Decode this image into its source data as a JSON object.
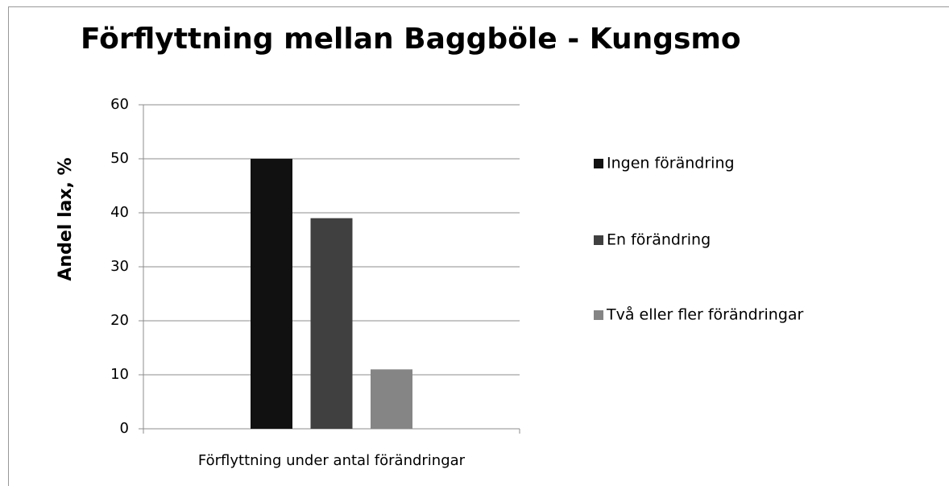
{
  "chart_data": {
    "type": "bar",
    "title": "Förflyttning mellan Baggböle - Kungsmo",
    "y_label": "Andel lax, %",
    "categories": [
      "Förflyttning under antal förändringar"
    ],
    "series": [
      {
        "name": "Ingen förändring",
        "color": "#111111",
        "values": [
          50
        ]
      },
      {
        "name": "En förändring",
        "color": "#404040",
        "values": [
          39
        ]
      },
      {
        "name": "Två eller fler förändringar",
        "color": "#858585",
        "values": [
          11
        ]
      }
    ],
    "ylim": [
      0,
      60
    ],
    "yticks": [
      0,
      10,
      20,
      30,
      40,
      50,
      60
    ],
    "grid": true,
    "legend": "right"
  }
}
